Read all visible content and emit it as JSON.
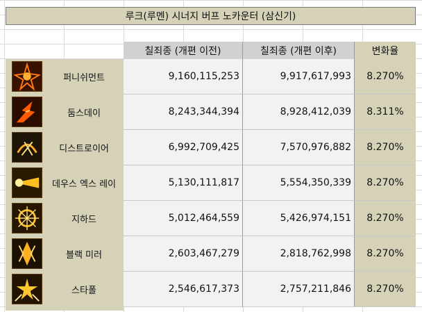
{
  "title": "루크(루멘) 시너지 버프 노카운터 (삼신기)",
  "headers": {
    "before": "칠죄종 (개편 이전)",
    "after": "칠죄종 (개편 이후)",
    "rate": "변화율"
  },
  "rows": [
    {
      "name": "퍼니쉬먼트",
      "before": "9,160,115,253",
      "after": "9,917,617,993",
      "rate": "8.270%",
      "icon": "punishment-skill-icon"
    },
    {
      "name": "둠스데이",
      "before": "8,243,344,394",
      "after": "8,928,412,039",
      "rate": "8.311%",
      "icon": "doomsday-skill-icon"
    },
    {
      "name": "디스트로이어",
      "before": "6,992,709,425",
      "after": "7,570,976,882",
      "rate": "8.270%",
      "icon": "destroyer-skill-icon"
    },
    {
      "name": "데우스 엑스 레이",
      "before": "5,130,111,817",
      "after": "5,554,350,339",
      "rate": "8.270%",
      "icon": "deus-ex-ray-skill-icon"
    },
    {
      "name": "지하드",
      "before": "5,012,464,559",
      "after": "5,426,974,151",
      "rate": "8.270%",
      "icon": "jihad-skill-icon"
    },
    {
      "name": "블랙 미러",
      "before": "2,603,467,279",
      "after": "2,818,762,998",
      "rate": "8.270%",
      "icon": "black-mirror-skill-icon"
    },
    {
      "name": "스타폴",
      "before": "2,546,617,373",
      "after": "2,757,211,846",
      "rate": "8.270%",
      "icon": "starfall-skill-icon"
    }
  ]
}
